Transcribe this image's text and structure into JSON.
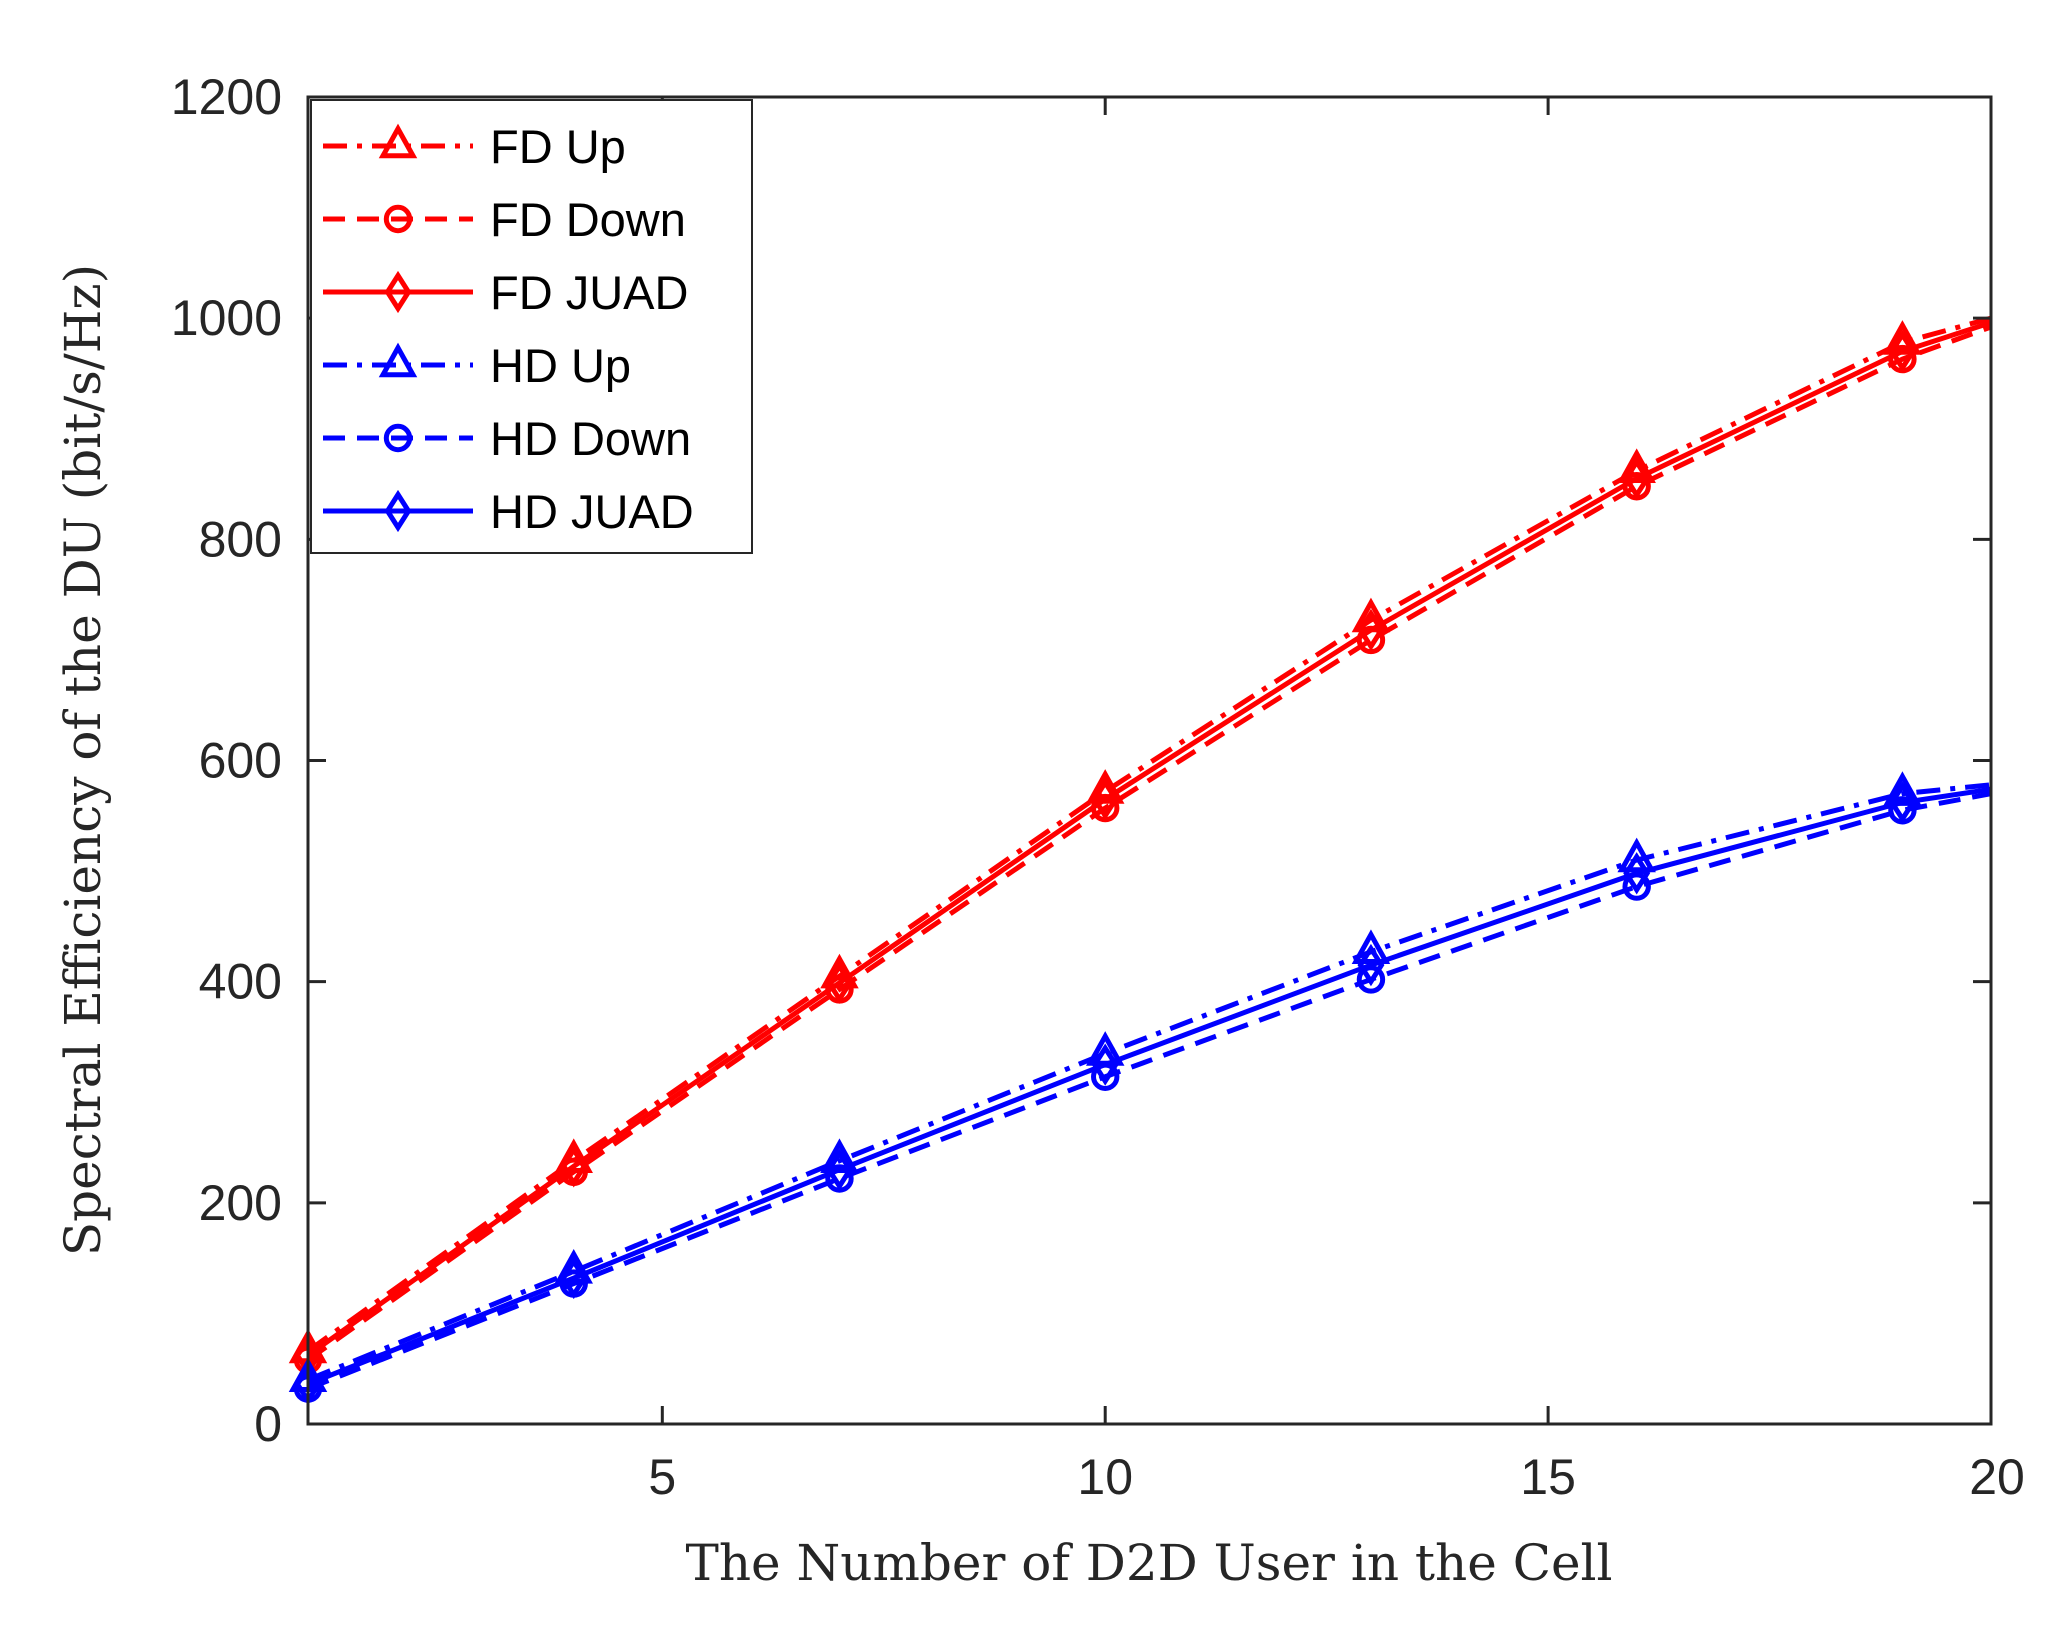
{
  "chart_data": {
    "type": "line",
    "xlabel": "The Number of D2D User in the Cell",
    "ylabel": "Spectral Efficiency of the DU (bit/s/Hz)",
    "xlim": [
      1,
      20
    ],
    "ylim": [
      0,
      1200
    ],
    "xticks": [
      5,
      10,
      15,
      20
    ],
    "yticks": [
      0,
      200,
      400,
      600,
      800,
      1000,
      1200
    ],
    "grid": false,
    "legend_position": "top-left",
    "x": [
      1,
      4,
      7,
      10,
      13,
      16,
      19,
      20
    ],
    "series": [
      {
        "name": "FD Up",
        "color": "#ff0000",
        "line_style": "dash-dot",
        "marker": "triangle",
        "values": [
          66,
          238,
          405,
          572,
          727,
          862,
          978,
          1000
        ]
      },
      {
        "name": "FD Down",
        "color": "#ff0000",
        "line_style": "dashed",
        "marker": "circle",
        "values": [
          58,
          228,
          393,
          557,
          709,
          848,
          963,
          992
        ]
      },
      {
        "name": "FD JUAD",
        "color": "#ff0000",
        "line_style": "solid",
        "marker": "diamond",
        "values": [
          62,
          233,
          399,
          565,
          718,
          855,
          970,
          996
        ]
      },
      {
        "name": "HD Up",
        "color": "#0000ff",
        "line_style": "dash-dot",
        "marker": "triangle",
        "values": [
          40,
          138,
          238,
          335,
          427,
          510,
          570,
          578
        ]
      },
      {
        "name": "HD Down",
        "color": "#0000ff",
        "line_style": "dashed",
        "marker": "circle",
        "values": [
          32,
          127,
          222,
          314,
          402,
          486,
          555,
          570
        ]
      },
      {
        "name": "HD JUAD",
        "color": "#0000ff",
        "line_style": "solid",
        "marker": "diamond",
        "values": [
          36,
          132,
          230,
          325,
          415,
          498,
          562,
          574
        ]
      }
    ]
  }
}
